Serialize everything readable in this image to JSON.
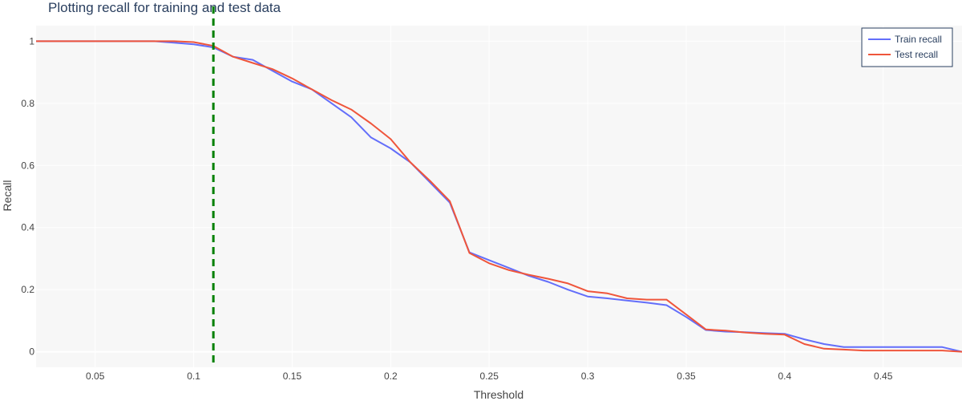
{
  "chart_data": {
    "type": "line",
    "title": "Plotting recall for training and test data",
    "xlabel": "Threshold",
    "ylabel": "Recall",
    "xlim": [
      0.02,
      0.49
    ],
    "ylim": [
      -0.05,
      1.05
    ],
    "x_ticks": [
      0.05,
      0.1,
      0.15,
      0.2,
      0.25,
      0.3,
      0.35,
      0.4,
      0.45
    ],
    "x_tick_labels": [
      "0.05",
      "0.1",
      "0.15",
      "0.2",
      "0.25",
      "0.3",
      "0.35",
      "0.4",
      "0.45"
    ],
    "y_ticks": [
      0,
      0.2,
      0.4,
      0.6,
      0.8,
      1
    ],
    "y_tick_labels": [
      "0",
      "0.2",
      "0.4",
      "0.6",
      "0.8",
      "1"
    ],
    "grid": true,
    "legend_position": "top-right",
    "background_color": "#f7f7f7",
    "threshold_line": {
      "x": 0.11,
      "color": "#008000",
      "style": "dashed"
    },
    "series": [
      {
        "name": "Train recall",
        "color": "#636efa",
        "x": [
          0.02,
          0.08,
          0.09,
          0.1,
          0.11,
          0.12,
          0.13,
          0.14,
          0.15,
          0.16,
          0.17,
          0.18,
          0.19,
          0.2,
          0.21,
          0.22,
          0.23,
          0.24,
          0.25,
          0.26,
          0.27,
          0.28,
          0.29,
          0.3,
          0.31,
          0.32,
          0.33,
          0.34,
          0.35,
          0.36,
          0.37,
          0.38,
          0.39,
          0.4,
          0.41,
          0.42,
          0.43,
          0.44,
          0.45,
          0.46,
          0.47,
          0.48,
          0.49
        ],
        "y": [
          1.0,
          1.0,
          0.995,
          0.99,
          0.98,
          0.95,
          0.94,
          0.905,
          0.87,
          0.845,
          0.8,
          0.755,
          0.69,
          0.655,
          0.61,
          0.545,
          0.48,
          0.32,
          0.295,
          0.27,
          0.245,
          0.225,
          0.2,
          0.178,
          0.172,
          0.165,
          0.158,
          0.15,
          0.112,
          0.07,
          0.065,
          0.063,
          0.06,
          0.058,
          0.04,
          0.025,
          0.015,
          0.015,
          0.015,
          0.015,
          0.015,
          0.015,
          0.0
        ]
      },
      {
        "name": "Test recall",
        "color": "#ef553b",
        "x": [
          0.02,
          0.08,
          0.09,
          0.1,
          0.11,
          0.12,
          0.13,
          0.14,
          0.15,
          0.16,
          0.17,
          0.18,
          0.19,
          0.2,
          0.21,
          0.22,
          0.23,
          0.24,
          0.25,
          0.26,
          0.27,
          0.28,
          0.29,
          0.3,
          0.31,
          0.32,
          0.33,
          0.34,
          0.35,
          0.36,
          0.37,
          0.38,
          0.39,
          0.4,
          0.41,
          0.42,
          0.43,
          0.44,
          0.45,
          0.46,
          0.47,
          0.48,
          0.49
        ],
        "y": [
          1.0,
          1.0,
          1.0,
          0.997,
          0.985,
          0.95,
          0.93,
          0.91,
          0.88,
          0.845,
          0.81,
          0.78,
          0.735,
          0.685,
          0.61,
          0.55,
          0.485,
          0.318,
          0.285,
          0.263,
          0.248,
          0.235,
          0.22,
          0.195,
          0.188,
          0.172,
          0.168,
          0.168,
          0.12,
          0.072,
          0.068,
          0.062,
          0.058,
          0.055,
          0.025,
          0.01,
          0.007,
          0.004,
          0.004,
          0.004,
          0.004,
          0.004,
          0.0
        ]
      }
    ]
  }
}
